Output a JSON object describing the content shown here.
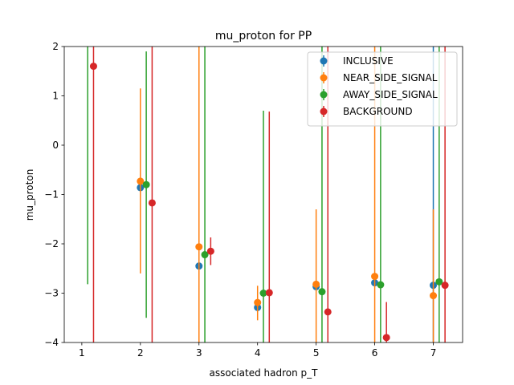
{
  "chart_data": {
    "type": "scatter",
    "title": "mu_proton for PP",
    "xlabel": "associated hadron p_T",
    "ylabel": "mu_proton",
    "xlim": [
      0.7,
      7.5
    ],
    "ylim": [
      -4,
      2
    ],
    "xticks": [
      "1",
      "2",
      "3",
      "4",
      "5",
      "6",
      "7"
    ],
    "yticks": [
      "−4",
      "−3",
      "−2",
      "−1",
      "0",
      "1",
      "2"
    ],
    "legend_position": "top-right",
    "grid": false,
    "series": [
      {
        "name": "INCLUSIVE",
        "color": "#1f77b4",
        "points": [
          {
            "x": 2.0,
            "y": -0.86,
            "lo": -0.86,
            "hi": -0.86
          },
          {
            "x": 3.0,
            "y": -2.45,
            "lo": -2.45,
            "hi": -2.45
          },
          {
            "x": 4.0,
            "y": -3.29,
            "lo": -3.29,
            "hi": -3.29
          },
          {
            "x": 5.0,
            "y": -2.87,
            "lo": -2.87,
            "hi": -2.87
          },
          {
            "x": 6.0,
            "y": -2.79,
            "lo": -2.79,
            "hi": -2.79
          },
          {
            "x": 7.0,
            "y": -2.84,
            "lo": -4.0,
            "hi": 2.0
          }
        ]
      },
      {
        "name": "NEAR_SIDE_SIGNAL",
        "color": "#ff7f0e",
        "points": [
          {
            "x": 2.0,
            "y": -0.73,
            "lo": -2.6,
            "hi": 1.15
          },
          {
            "x": 3.0,
            "y": -2.06,
            "lo": -4.0,
            "hi": 2.0
          },
          {
            "x": 4.0,
            "y": -3.19,
            "lo": -3.55,
            "hi": -2.85
          },
          {
            "x": 5.0,
            "y": -2.82,
            "lo": -4.0,
            "hi": -1.3
          },
          {
            "x": 6.0,
            "y": -2.66,
            "lo": -4.0,
            "hi": 2.0
          },
          {
            "x": 7.0,
            "y": -3.05,
            "lo": -4.0,
            "hi": -1.3
          }
        ]
      },
      {
        "name": "AWAY_SIDE_SIGNAL",
        "color": "#2ca02c",
        "points": [
          {
            "x": 1.1,
            "y": 2.5,
            "lo": -2.82,
            "hi": 2.0
          },
          {
            "x": 2.1,
            "y": -0.8,
            "lo": -3.5,
            "hi": 1.9
          },
          {
            "x": 3.1,
            "y": -2.22,
            "lo": -4.0,
            "hi": 2.0
          },
          {
            "x": 4.1,
            "y": -3.0,
            "lo": -4.0,
            "hi": 0.7
          },
          {
            "x": 5.1,
            "y": -2.97,
            "lo": -4.0,
            "hi": 2.0
          },
          {
            "x": 6.1,
            "y": -2.83,
            "lo": -4.0,
            "hi": 2.0
          },
          {
            "x": 7.1,
            "y": -2.77,
            "lo": -4.0,
            "hi": 2.0
          }
        ]
      },
      {
        "name": "BACKGROUND",
        "color": "#d62728",
        "points": [
          {
            "x": 1.2,
            "y": 1.6,
            "lo": -4.0,
            "hi": 2.0
          },
          {
            "x": 2.2,
            "y": -1.17,
            "lo": -4.0,
            "hi": 2.0
          },
          {
            "x": 3.2,
            "y": -2.15,
            "lo": -2.43,
            "hi": -1.87
          },
          {
            "x": 4.2,
            "y": -2.99,
            "lo": -4.0,
            "hi": 0.68
          },
          {
            "x": 5.2,
            "y": -3.38,
            "lo": -4.0,
            "hi": 2.0
          },
          {
            "x": 6.2,
            "y": -3.9,
            "lo": -4.0,
            "hi": -3.18
          },
          {
            "x": 7.2,
            "y": -2.84,
            "lo": -4.0,
            "hi": 2.0
          }
        ]
      }
    ]
  }
}
